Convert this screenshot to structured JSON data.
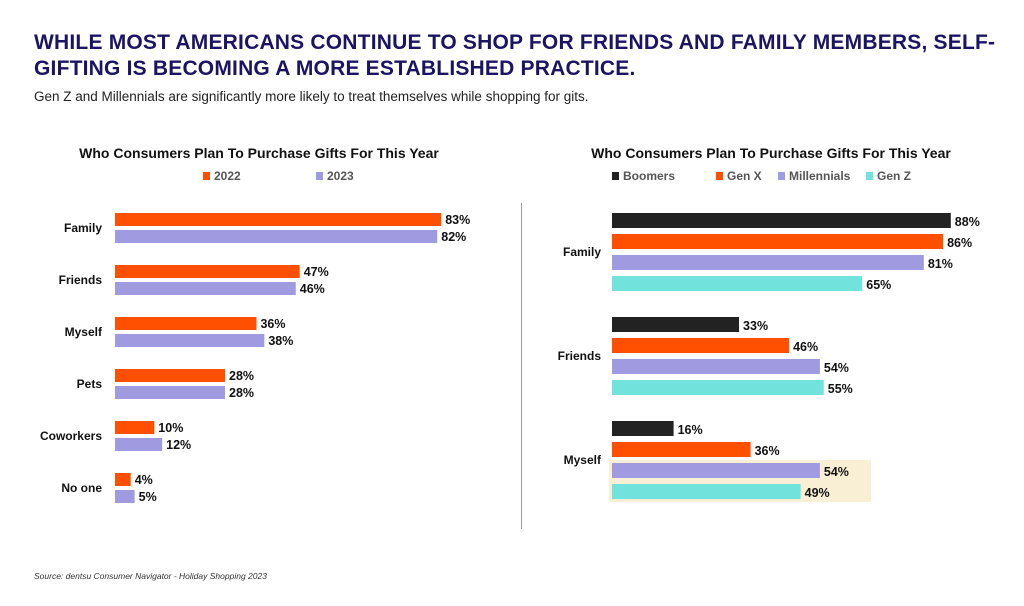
{
  "header": {
    "title": "WHILE MOST AMERICANS CONTINUE TO SHOP FOR FRIENDS AND FAMILY MEMBERS, SELF-GIFTING IS BECOMING A MORE ESTABLISHED PRACTICE.",
    "subtitle": "Gen Z and Millennials are significantly more likely to treat themselves while shopping for gits."
  },
  "footer": {
    "source": "Source: dentsu Consumer Navigator - Holiday Shopping 2023"
  },
  "chart_data": [
    {
      "type": "bar",
      "orientation": "horizontal",
      "title": "Who Consumers Plan To Purchase Gifts For This Year",
      "categories": [
        "Family",
        "Friends",
        "Myself",
        "Pets",
        "Coworkers",
        "No one"
      ],
      "series": [
        {
          "name": "2022",
          "color": "#ff4f00",
          "values": [
            83,
            47,
            36,
            28,
            10,
            4
          ]
        },
        {
          "name": "2023",
          "color": "#a09be0",
          "values": [
            82,
            46,
            38,
            28,
            12,
            5
          ]
        }
      ],
      "value_suffix": "%",
      "legend": "top",
      "grid": false
    },
    {
      "type": "bar",
      "orientation": "horizontal",
      "title": "Who Consumers Plan To Purchase Gifts For This Year",
      "categories": [
        "Family",
        "Friends",
        "Myself"
      ],
      "series": [
        {
          "name": "Boomers",
          "color": "#222222",
          "values": [
            88,
            33,
            16
          ]
        },
        {
          "name": "Gen X",
          "color": "#ff4f00",
          "values": [
            86,
            46,
            36
          ]
        },
        {
          "name": "Millennials",
          "color": "#a09be0",
          "values": [
            81,
            54,
            54
          ]
        },
        {
          "name": "Gen Z",
          "color": "#72e3dc",
          "values": [
            65,
            55,
            49
          ]
        }
      ],
      "value_suffix": "%",
      "legend": "top",
      "grid": false,
      "highlight": {
        "category": "Myself",
        "series": [
          "Millennials",
          "Gen Z"
        ],
        "color": "#f8efd4"
      }
    }
  ]
}
